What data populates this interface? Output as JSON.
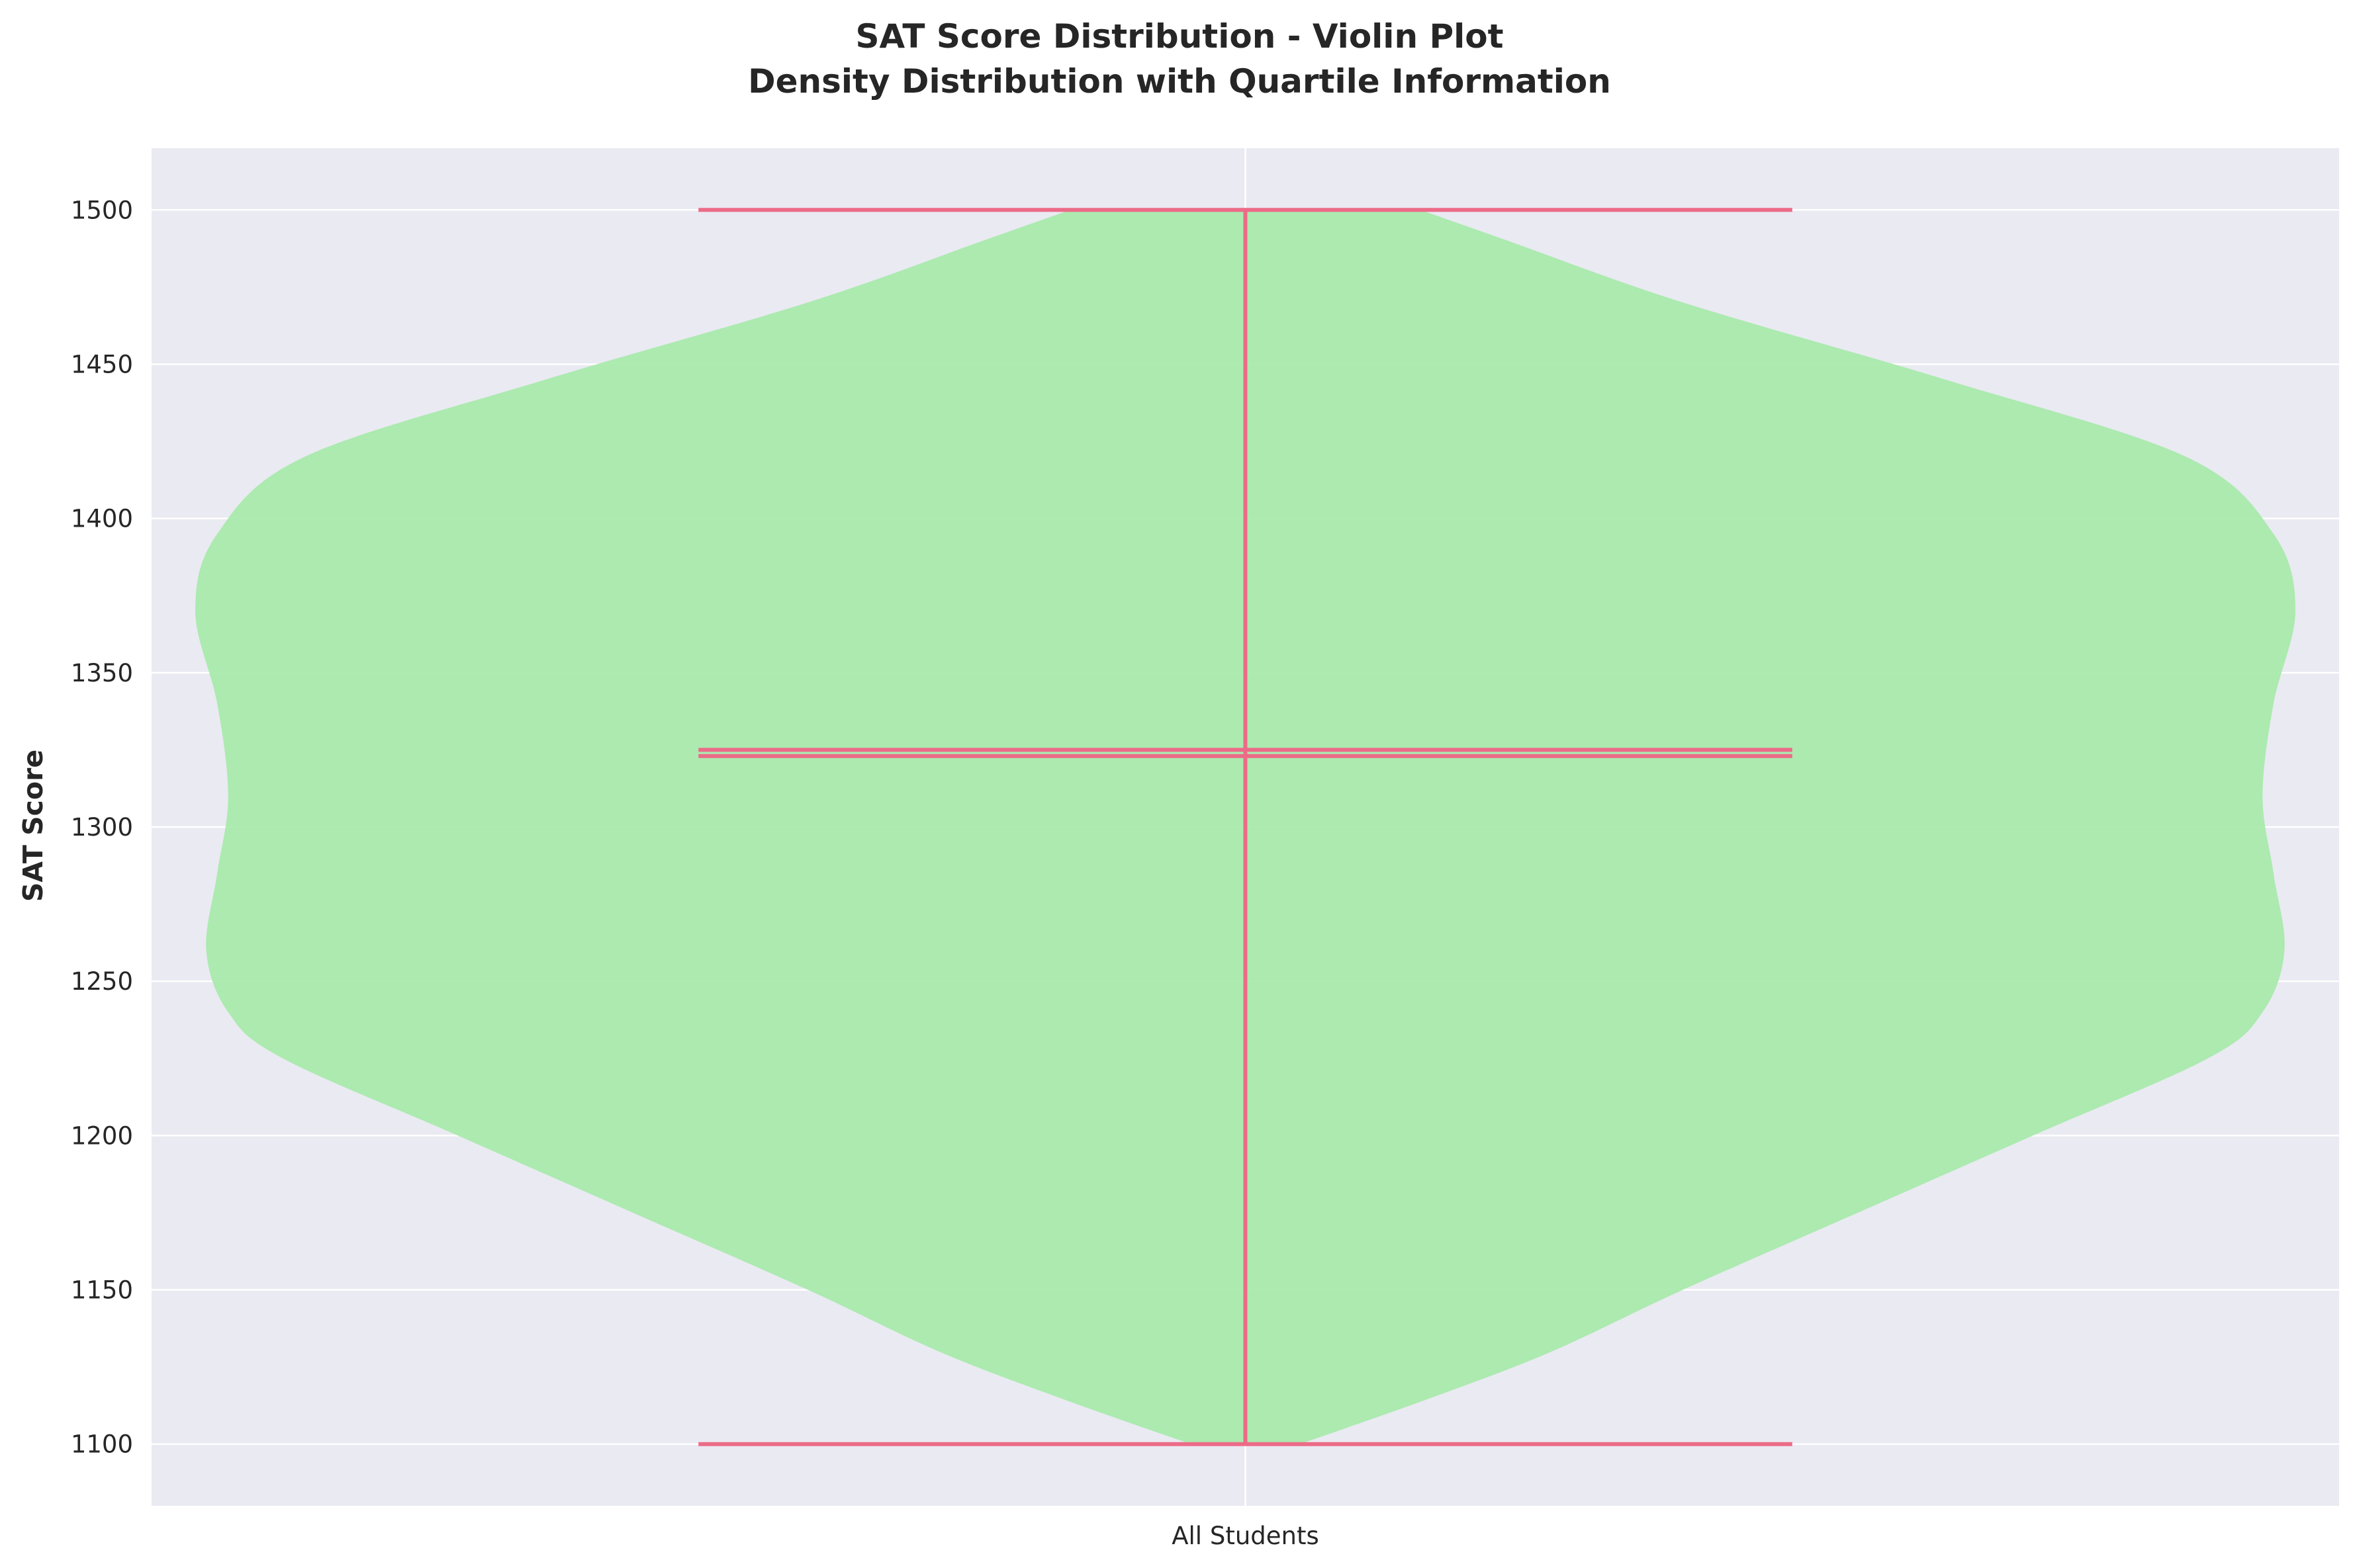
{
  "chart_data": {
    "type": "violin",
    "title": "SAT Score Distribution - Violin Plot",
    "subtitle": "Density Distribution with Quartile Information",
    "xlabel": "",
    "ylabel": "SAT Score",
    "categories": [
      "All Students"
    ],
    "ylim": [
      1080,
      1520
    ],
    "yticks": [
      1100,
      1150,
      1200,
      1250,
      1300,
      1350,
      1400,
      1450,
      1500
    ],
    "grid": true,
    "legend": "none",
    "colors": {
      "background": "#eaeaf2",
      "grid": "#ffffff",
      "violin_fill": "#a9eaac",
      "lines": "#ec6b87",
      "text": "#262626"
    },
    "series": [
      {
        "category": "All Students",
        "min": 1100,
        "max": 1500,
        "mean": 1325,
        "median": 1323,
        "density_profile": [
          {
            "score": 1100,
            "half_width": 0.05
          },
          {
            "score": 1115,
            "half_width": 0.17
          },
          {
            "score": 1130,
            "half_width": 0.28
          },
          {
            "score": 1150,
            "half_width": 0.4
          },
          {
            "score": 1175,
            "half_width": 0.56
          },
          {
            "score": 1200,
            "half_width": 0.72
          },
          {
            "score": 1225,
            "half_width": 0.88
          },
          {
            "score": 1240,
            "half_width": 0.93
          },
          {
            "score": 1260,
            "half_width": 0.95
          },
          {
            "score": 1285,
            "half_width": 0.94
          },
          {
            "score": 1310,
            "half_width": 0.93
          },
          {
            "score": 1340,
            "half_width": 0.94
          },
          {
            "score": 1370,
            "half_width": 0.96
          },
          {
            "score": 1395,
            "half_width": 0.94
          },
          {
            "score": 1420,
            "half_width": 0.86
          },
          {
            "score": 1445,
            "half_width": 0.64
          },
          {
            "score": 1470,
            "half_width": 0.4
          },
          {
            "score": 1490,
            "half_width": 0.24
          },
          {
            "score": 1500,
            "half_width": 0.16
          }
        ]
      }
    ]
  }
}
